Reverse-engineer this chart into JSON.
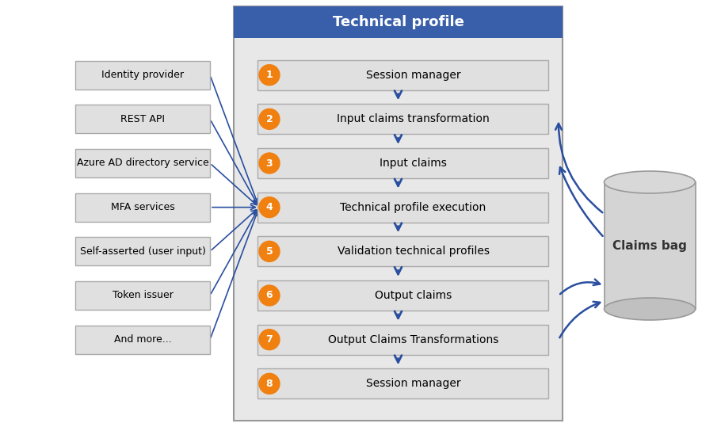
{
  "title": "Technical profile",
  "title_bg_color": "#3a5faa",
  "title_text_color": "#ffffff",
  "panel_bg_color": "#e8e8e8",
  "panel_border_color": "#999999",
  "box_bg_color": "#e0e0e0",
  "box_border_color": "#aaaaaa",
  "arrow_color": "#2a4fa0",
  "orange_color": "#f08010",
  "left_box_bg": "#e0e0e0",
  "left_box_border": "#aaaaaa",
  "steps": [
    "Session manager",
    "Input claims transformation",
    "Input claims",
    "Technical profile execution",
    "Validation technical profiles",
    "Output claims",
    "Output Claims Transformations",
    "Session manager"
  ],
  "left_items": [
    "Identity provider",
    "REST API",
    "Azure AD directory service",
    "MFA services",
    "Self-asserted (user input)",
    "Token issuer",
    "And more..."
  ],
  "claims_bag_label": "Claims bag",
  "fig_w": 9.1,
  "fig_h": 5.39,
  "dpi": 100
}
